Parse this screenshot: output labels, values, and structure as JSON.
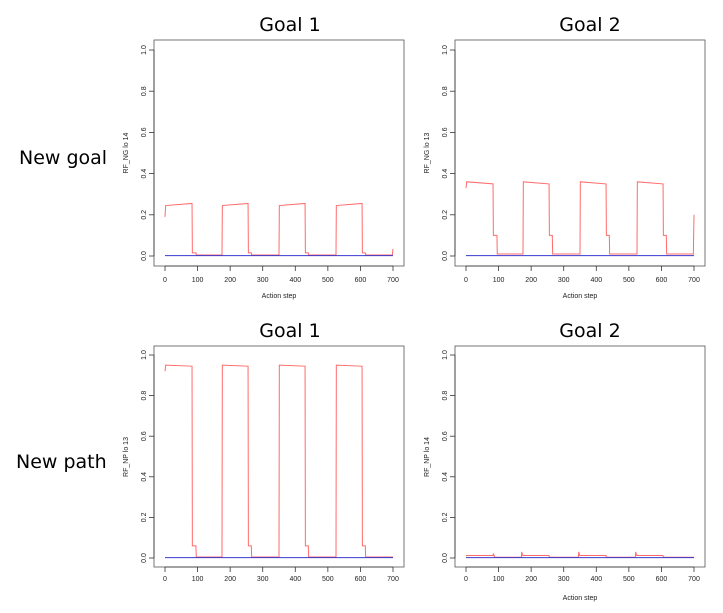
{
  "rows": [
    {
      "label": "New goal"
    },
    {
      "label": "New path"
    }
  ],
  "colors": {
    "series_main": "#ff6b6b",
    "series_baseline": "#3a3ad0",
    "axis": "#333333",
    "box": "#555555"
  },
  "chart_data": [
    {
      "type": "line",
      "title": "Goal 1",
      "xlabel": "Action step",
      "ylabel": "RF_NG lo 14",
      "xlim": [
        0,
        700
      ],
      "ylim": [
        0,
        1.0
      ],
      "xticks": [
        0,
        100,
        200,
        300,
        400,
        500,
        600,
        700
      ],
      "yticks": [
        0.0,
        0.2,
        0.4,
        0.6,
        0.8,
        1.0
      ],
      "grid": false,
      "series": [
        {
          "color": "#ff6b6b",
          "x": [
            0,
            2,
            83,
            84,
            95,
            96,
            175,
            176,
            255,
            256,
            265,
            266,
            350,
            351,
            430,
            431,
            440,
            441,
            525,
            526,
            605,
            606,
            615,
            616,
            698,
            700
          ],
          "y": [
            0.19,
            0.245,
            0.255,
            0.015,
            0.015,
            0.005,
            0.005,
            0.245,
            0.255,
            0.015,
            0.015,
            0.005,
            0.005,
            0.245,
            0.255,
            0.015,
            0.015,
            0.005,
            0.005,
            0.245,
            0.255,
            0.015,
            0.015,
            0.005,
            0.005,
            0.035
          ]
        },
        {
          "color": "#3a3ad0",
          "x": [
            0,
            700
          ],
          "y": [
            0.002,
            0.002
          ]
        }
      ]
    },
    {
      "type": "line",
      "title": "Goal 2",
      "xlabel": "Action step",
      "ylabel": "RF_NG lo 13",
      "xlim": [
        0,
        700
      ],
      "ylim": [
        0,
        1.0
      ],
      "xticks": [
        0,
        100,
        200,
        300,
        400,
        500,
        600,
        700
      ],
      "yticks": [
        0.0,
        0.2,
        0.4,
        0.6,
        0.8,
        1.0
      ],
      "grid": false,
      "series": [
        {
          "color": "#ff6b6b",
          "x": [
            0,
            2,
            83,
            84,
            95,
            96,
            175,
            176,
            255,
            256,
            265,
            266,
            350,
            351,
            430,
            431,
            440,
            441,
            525,
            526,
            605,
            606,
            615,
            616,
            698,
            700
          ],
          "y": [
            0.33,
            0.36,
            0.35,
            0.1,
            0.1,
            0.01,
            0.01,
            0.36,
            0.35,
            0.1,
            0.1,
            0.01,
            0.01,
            0.36,
            0.35,
            0.1,
            0.1,
            0.01,
            0.01,
            0.36,
            0.35,
            0.1,
            0.1,
            0.01,
            0.01,
            0.2
          ]
        },
        {
          "color": "#3a3ad0",
          "x": [
            0,
            700
          ],
          "y": [
            0.002,
            0.002
          ]
        }
      ]
    },
    {
      "type": "line",
      "title": "Goal 1",
      "xlabel": "",
      "ylabel": "RF_NP lo 13",
      "xlim": [
        0,
        700
      ],
      "ylim": [
        0,
        1.0
      ],
      "xticks": [
        0,
        100,
        200,
        300,
        400,
        500,
        600,
        700
      ],
      "yticks": [
        0.0,
        0.2,
        0.4,
        0.6,
        0.8,
        1.0
      ],
      "grid": false,
      "series": [
        {
          "color": "#ff6b6b",
          "x": [
            0,
            2,
            83,
            84,
            95,
            96,
            175,
            176,
            255,
            256,
            265,
            266,
            350,
            351,
            430,
            431,
            440,
            441,
            525,
            526,
            605,
            606,
            615,
            616,
            698,
            700
          ],
          "y": [
            0.92,
            0.95,
            0.945,
            0.06,
            0.06,
            0.005,
            0.005,
            0.95,
            0.945,
            0.06,
            0.06,
            0.005,
            0.005,
            0.95,
            0.945,
            0.06,
            0.06,
            0.005,
            0.005,
            0.95,
            0.945,
            0.06,
            0.06,
            0.005,
            0.005,
            0.005
          ]
        },
        {
          "color": "#3a3ad0",
          "x": [
            0,
            700
          ],
          "y": [
            0.002,
            0.002
          ]
        }
      ]
    },
    {
      "type": "line",
      "title": "Goal 2",
      "xlabel": "Action step",
      "ylabel": "RF_NP lo 14",
      "xlim": [
        0,
        700
      ],
      "ylim": [
        0,
        1.0
      ],
      "xticks": [
        0,
        100,
        200,
        300,
        400,
        500,
        600,
        700
      ],
      "yticks": [
        0.0,
        0.2,
        0.4,
        0.6,
        0.8,
        1.0
      ],
      "grid": false,
      "series": [
        {
          "color": "#ff6b6b",
          "x": [
            0,
            2,
            83,
            84,
            88,
            89,
            170,
            171,
            174,
            175,
            255,
            256,
            345,
            346,
            349,
            350,
            430,
            431,
            520,
            521,
            524,
            525,
            605,
            606,
            698,
            700
          ],
          "y": [
            0.01,
            0.012,
            0.012,
            0.022,
            0.004,
            0.004,
            0.004,
            0.03,
            0.012,
            0.012,
            0.012,
            0.004,
            0.004,
            0.03,
            0.012,
            0.012,
            0.012,
            0.004,
            0.004,
            0.03,
            0.012,
            0.012,
            0.012,
            0.004,
            0.004,
            0.004
          ]
        },
        {
          "color": "#3a3ad0",
          "x": [
            0,
            700
          ],
          "y": [
            0.002,
            0.002
          ]
        }
      ]
    }
  ]
}
